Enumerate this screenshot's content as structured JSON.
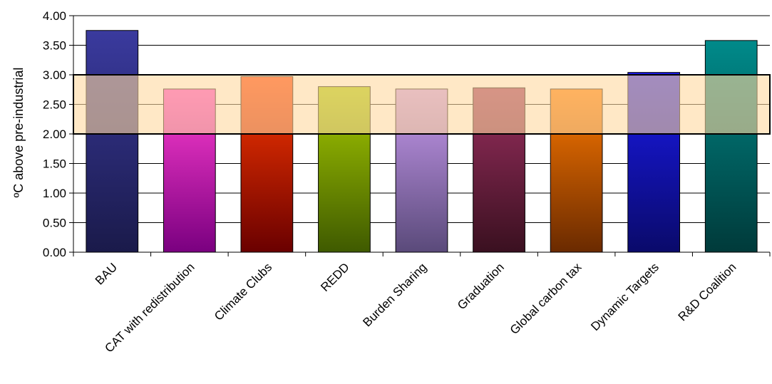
{
  "chart_data": {
    "type": "bar",
    "ylabel": "ºC above pre-industrial",
    "ylim": [
      0,
      4
    ],
    "yticks": [
      "0.00",
      "0.50",
      "1.00",
      "1.50",
      "2.00",
      "2.50",
      "3.00",
      "3.50",
      "4.00"
    ],
    "grid": true,
    "categories": [
      "BAU",
      "CAT with redistribution",
      "Climate Clubs",
      "REDD",
      "Burden Sharing",
      "Graduation",
      "Global carbon tax",
      "Dynamic Targets",
      "R&D Coalition"
    ],
    "values": [
      3.75,
      2.76,
      2.97,
      2.8,
      2.76,
      2.78,
      2.76,
      3.04,
      3.58
    ],
    "bar_colors": [
      [
        "#3a3a9e",
        "#1a1a4a"
      ],
      [
        "#ff3fd0",
        "#7a0080"
      ],
      [
        "#ff3a00",
        "#6a0000"
      ],
      [
        "#a8cc00",
        "#3f5a00"
      ],
      [
        "#c89aef",
        "#5a4a7a"
      ],
      [
        "#9a2f5f",
        "#3a1020"
      ],
      [
        "#ff7a00",
        "#6a2a00"
      ],
      [
        "#1a1aee",
        "#0a0a6a"
      ],
      [
        "#008a8a",
        "#003a3a"
      ]
    ],
    "highlight_band": {
      "from": 2.0,
      "to": 3.0,
      "color": "#ffd9a0"
    }
  }
}
